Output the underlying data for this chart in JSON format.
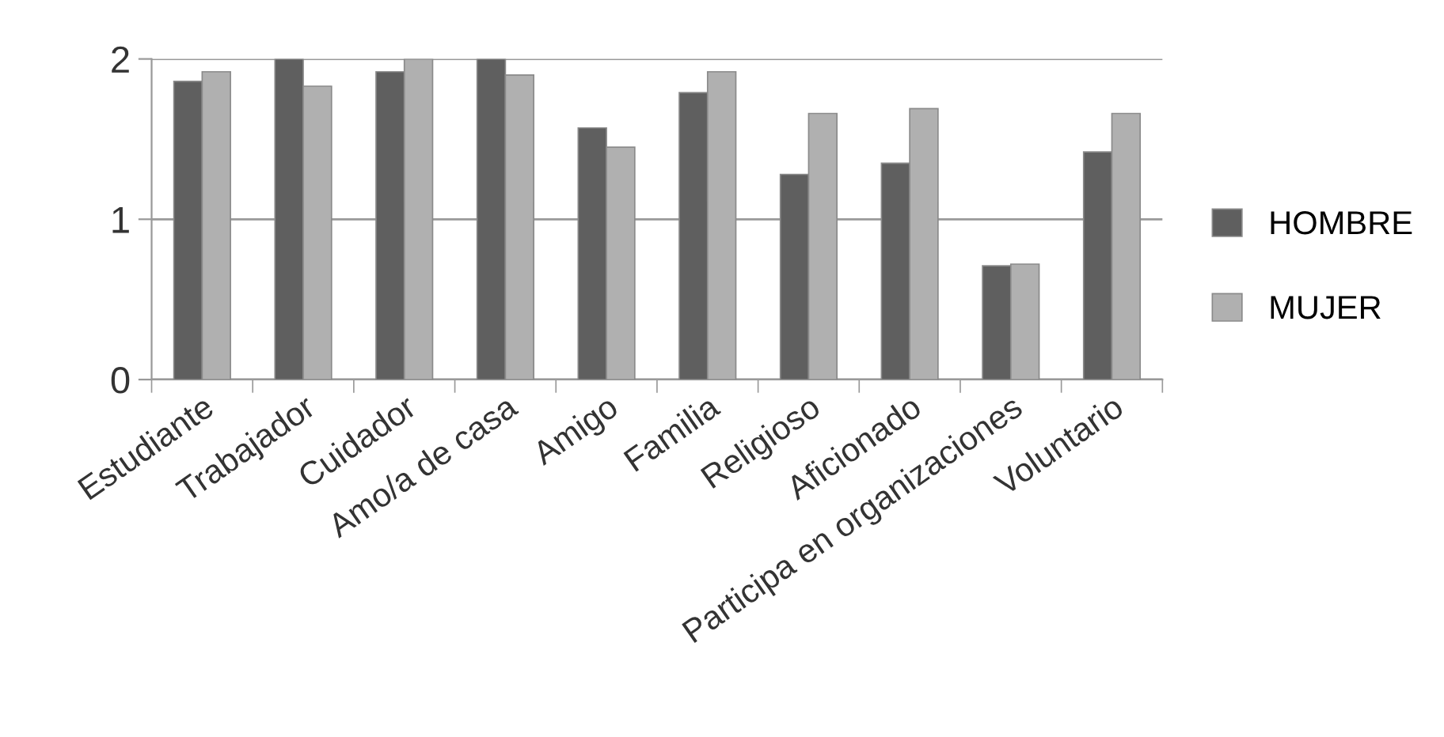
{
  "chart_data": {
    "type": "bar",
    "categories": [
      "Estudiante",
      "Trabajador",
      "Cuidador",
      "Amo/a de casa",
      "Amigo",
      "Familia",
      "Religioso",
      "Aficionado",
      "Participa en organizaciones",
      "Voluntario"
    ],
    "series": [
      {
        "name": "HOMBRE",
        "color": "#5f5f5f",
        "values": [
          1.86,
          2.0,
          1.92,
          2.0,
          1.57,
          1.79,
          1.28,
          1.35,
          0.71,
          1.42
        ]
      },
      {
        "name": "MUJER",
        "color": "#b0b0b0",
        "values": [
          1.92,
          1.83,
          2.0,
          1.9,
          1.45,
          1.92,
          1.66,
          1.69,
          0.72,
          1.66
        ]
      }
    ],
    "ylim": [
      0,
      2
    ],
    "yticks": [
      0,
      1,
      2
    ],
    "grid": "y",
    "legend": "right"
  }
}
